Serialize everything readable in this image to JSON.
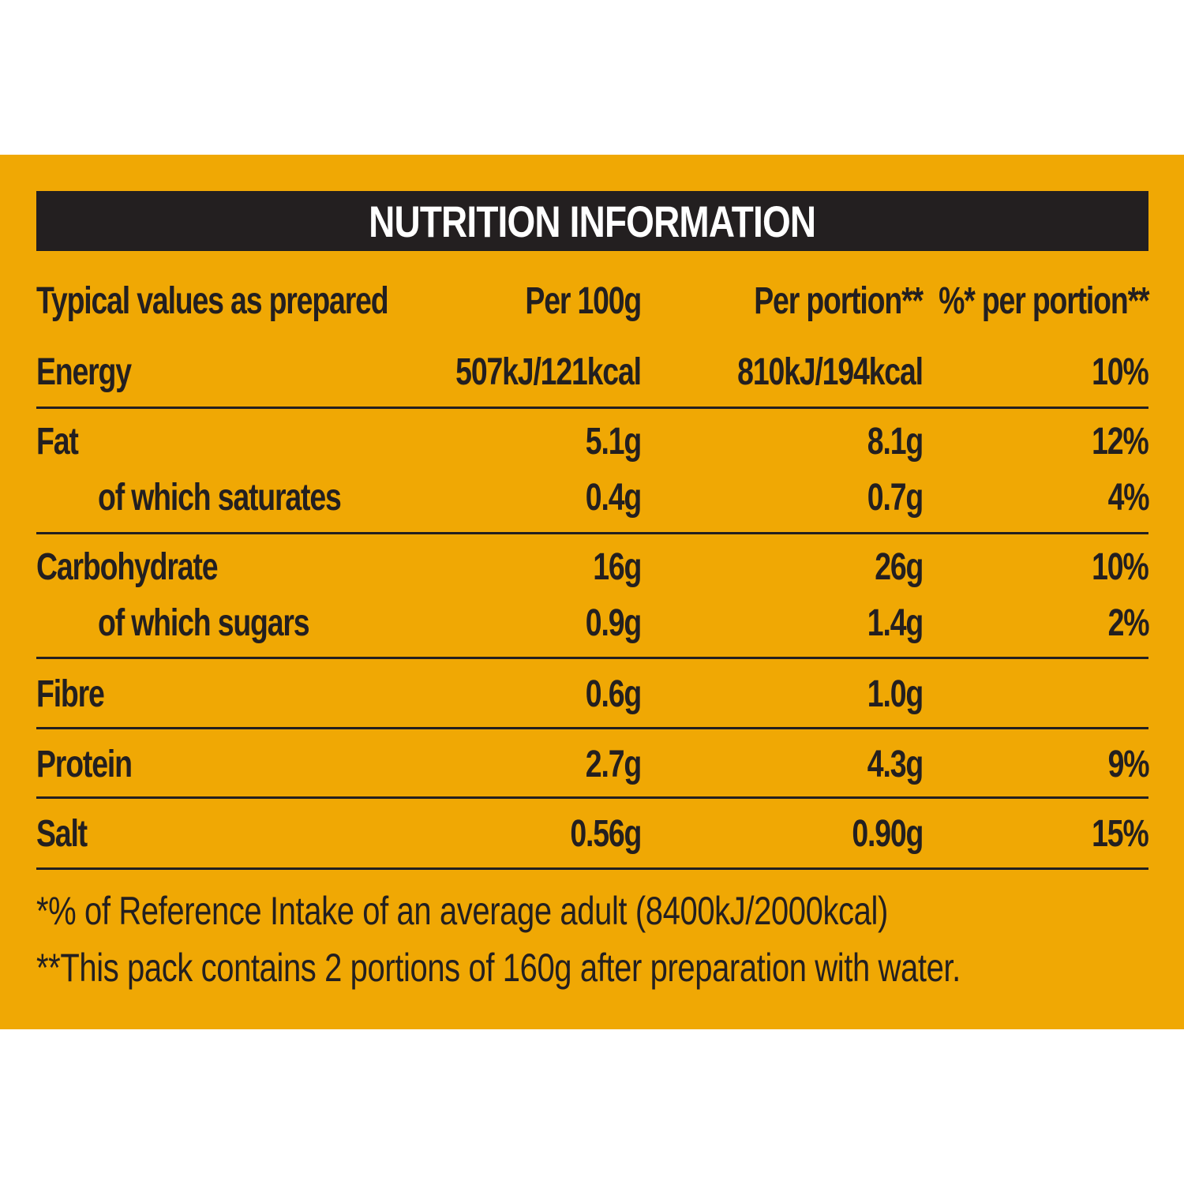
{
  "colors": {
    "panel_background": "#f0a804",
    "header_background": "#231f20",
    "text": "#231f20",
    "header_text": "#ffffff"
  },
  "title": "NUTRITION INFORMATION",
  "columns": {
    "label": "Typical values as prepared",
    "per_100g": "Per 100g",
    "per_portion": "Per portion**",
    "pct_per_portion": "%* per portion**"
  },
  "rows": [
    {
      "label": "Energy",
      "per_100g": "507kJ/121kcal",
      "per_portion": "810kJ/194kcal",
      "pct": "10%"
    },
    {
      "label": "Fat",
      "per_100g": "5.1g",
      "per_portion": "8.1g",
      "pct": "12%"
    },
    {
      "label": "of which saturates",
      "per_100g": "0.4g",
      "per_portion": "0.7g",
      "pct": "4%"
    },
    {
      "label": "Carbohydrate",
      "per_100g": "16g",
      "per_portion": "26g",
      "pct": "10%"
    },
    {
      "label": "of which sugars",
      "per_100g": "0.9g",
      "per_portion": "1.4g",
      "pct": "2%"
    },
    {
      "label": "Fibre",
      "per_100g": "0.6g",
      "per_portion": "1.0g",
      "pct": ""
    },
    {
      "label": "Protein",
      "per_100g": "2.7g",
      "per_portion": "4.3g",
      "pct": "9%"
    },
    {
      "label": "Salt",
      "per_100g": "0.56g",
      "per_portion": "0.90g",
      "pct": "15%"
    }
  ],
  "footnotes": [
    "*% of Reference Intake of an average adult (8400kJ/2000kcal)",
    "**This pack contains 2 portions of 160g after preparation with water."
  ]
}
